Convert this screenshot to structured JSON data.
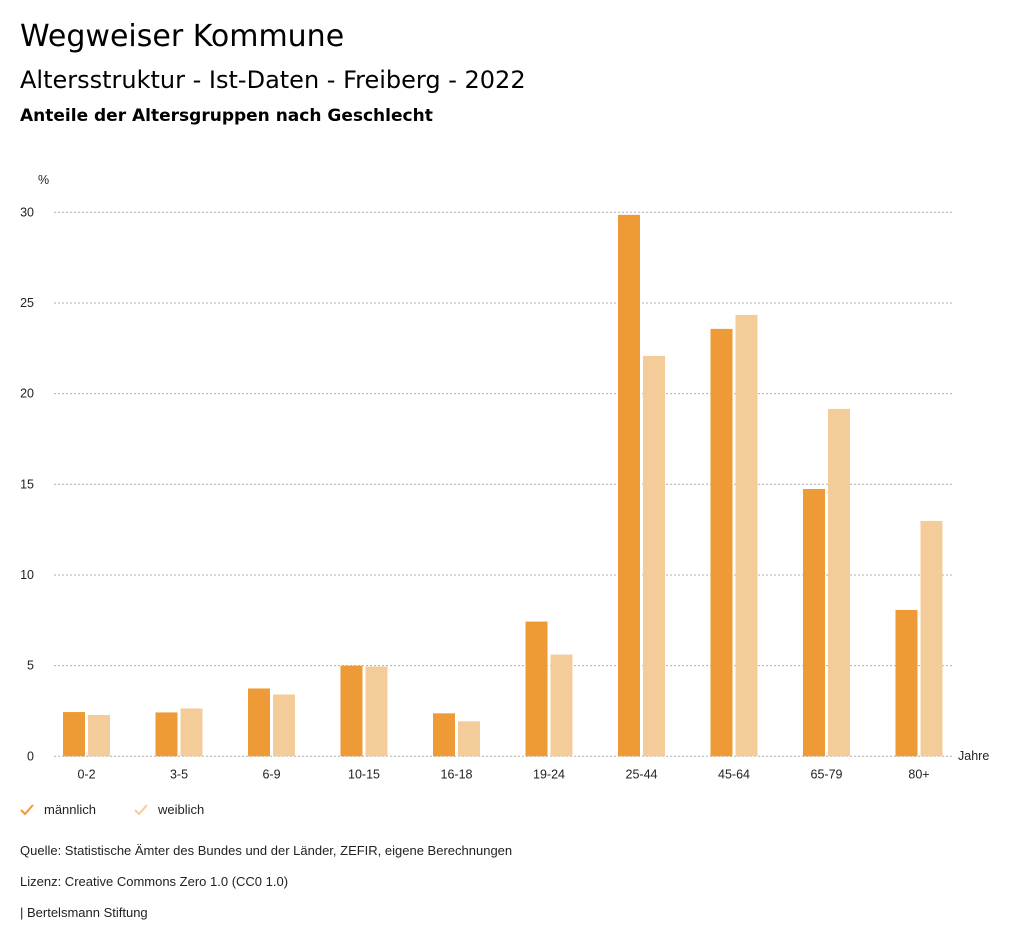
{
  "header": {
    "title": "Wegweiser Kommune",
    "subtitle": "Altersstruktur - Ist-Daten - Freiberg - 2022",
    "chart_title": "Anteile der Altersgruppen nach Geschlecht"
  },
  "chart_data": {
    "type": "bar",
    "title": "Anteile der Altersgruppen nach Geschlecht",
    "xlabel": "Jahre",
    "ylabel": "%",
    "ylim": [
      0,
      30
    ],
    "yticks": [
      0,
      5,
      10,
      15,
      20,
      25,
      30
    ],
    "grid": true,
    "legend_position": "bottom-left",
    "categories": [
      "0-2",
      "3-5",
      "6-9",
      "10-15",
      "16-18",
      "19-24",
      "25-44",
      "45-64",
      "65-79",
      "80+"
    ],
    "series": [
      {
        "name": "männlich",
        "color": "#ED9A37",
        "values": [
          2.44,
          2.42,
          3.74,
          5.0,
          2.37,
          7.43,
          29.86,
          23.57,
          14.74,
          8.07
        ]
      },
      {
        "name": "weiblich",
        "color": "#F4CC9A",
        "values": [
          2.28,
          2.64,
          3.41,
          4.95,
          1.93,
          5.61,
          22.08,
          24.34,
          19.16,
          12.98
        ]
      }
    ]
  },
  "legend": {
    "items": [
      {
        "label": "männlich",
        "icon": "check-icon",
        "color": "#ED9A37"
      },
      {
        "label": "weiblich",
        "icon": "check-icon",
        "color": "#F4CC9A"
      }
    ]
  },
  "footer": {
    "source": "Quelle: Statistische Ämter des Bundes und der Länder, ZEFIR, eigene Berechnungen",
    "license": "Lizenz: Creative Commons Zero 1.0 (CC0 1.0)",
    "publisher": "| Bertelsmann Stiftung"
  }
}
